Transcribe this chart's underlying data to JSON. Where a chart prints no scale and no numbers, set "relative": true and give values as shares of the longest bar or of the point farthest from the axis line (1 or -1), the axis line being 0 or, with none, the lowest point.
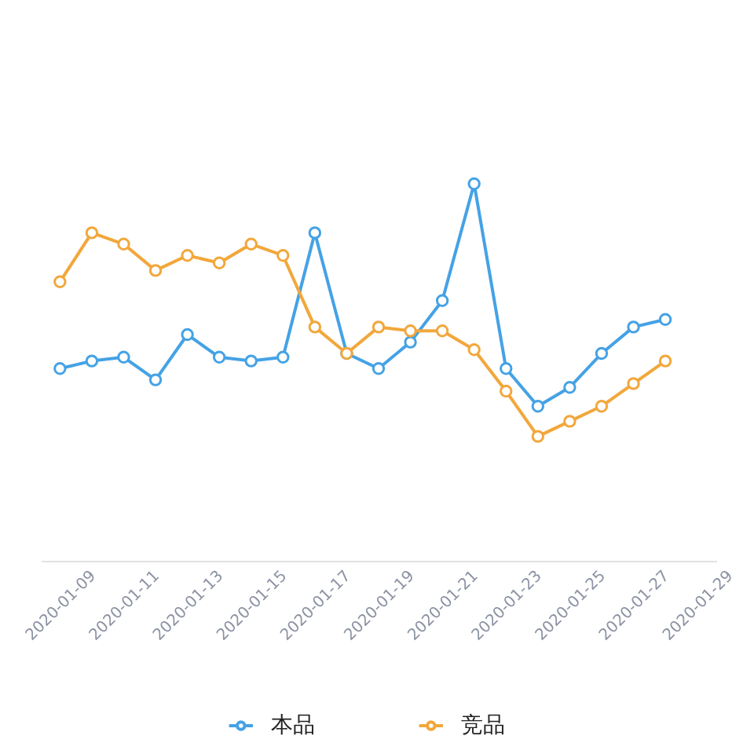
{
  "chart_data": {
    "type": "line",
    "categories": [
      "2020-01-09",
      null,
      "2020-01-11",
      null,
      "2020-01-13",
      null,
      "2020-01-15",
      null,
      "2020-01-17",
      null,
      "2020-01-19",
      null,
      "2020-01-21",
      null,
      "2020-01-23",
      null,
      "2020-01-25",
      null,
      "2020-01-27",
      null,
      "2020-01-29"
    ],
    "relative": true,
    "series": [
      {
        "name": "本品",
        "color": "#45a2e5",
        "values": [
          0.51,
          0.53,
          0.54,
          0.48,
          0.6,
          0.54,
          0.53,
          0.54,
          0.87,
          0.55,
          0.51,
          0.58,
          0.69,
          1,
          0.51,
          0.41,
          0.46,
          0.55,
          0.62,
          0.64,
          null
        ]
      },
      {
        "name": "竞品",
        "color": "#f2a73b",
        "values": [
          0.74,
          0.87,
          0.84,
          0.77,
          0.81,
          0.79,
          0.84,
          0.81,
          0.62,
          0.55,
          0.62,
          0.61,
          0.61,
          0.56,
          0.45,
          0.33,
          0.37,
          0.41,
          0.47,
          0.53,
          null
        ]
      }
    ],
    "marker": "circle",
    "legend": "bottom"
  }
}
